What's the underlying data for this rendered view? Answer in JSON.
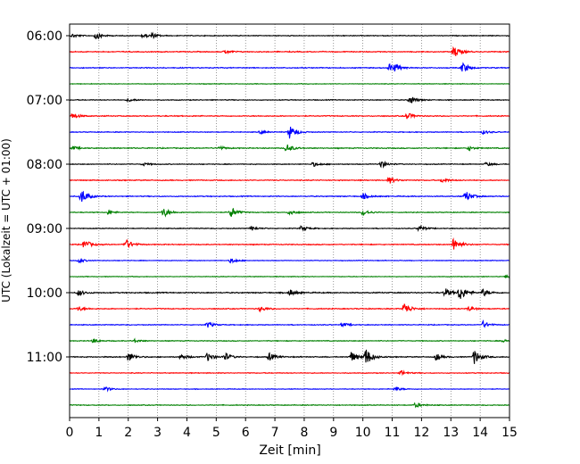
{
  "chart_data": {
    "type": "line",
    "title": "",
    "xlabel": "Zeit  [min]",
    "ylabel": "UTC (Lokalzeit = UTC + 01:00)",
    "xlim": [
      0,
      15
    ],
    "x_ticks": [
      "0",
      "1",
      "2",
      "3",
      "4",
      "5",
      "6",
      "7",
      "8",
      "9",
      "10",
      "11",
      "12",
      "13",
      "14",
      "15"
    ],
    "y_ticks": [
      "06:00",
      "07:00",
      "08:00",
      "09:00",
      "10:00",
      "11:00"
    ],
    "grid": "vertical dotted lines at each minute",
    "trace_interval_min": 15,
    "colors": {
      "black": "#000000",
      "red": "#ff0000",
      "blue": "#0000ff",
      "green": "#008000"
    },
    "traces": [
      {
        "start": "06:00",
        "color": "black",
        "noise": 0.5,
        "events": [
          [
            0.1,
            0.5
          ],
          [
            0.9,
            1.0
          ],
          [
            2.5,
            0.6
          ],
          [
            2.8,
            0.6
          ]
        ]
      },
      {
        "start": "06:15",
        "color": "red",
        "noise": 0.6,
        "events": [
          [
            5.3,
            0.5
          ],
          [
            13.1,
            1.6
          ]
        ]
      },
      {
        "start": "06:30",
        "color": "blue",
        "noise": 0.6,
        "events": [
          [
            10.9,
            1.1
          ],
          [
            11.1,
            0.7
          ],
          [
            13.4,
            1.4
          ]
        ]
      },
      {
        "start": "06:45",
        "color": "green",
        "noise": 0.4,
        "events": []
      },
      {
        "start": "07:00",
        "color": "black",
        "noise": 0.5,
        "events": [
          [
            2.0,
            0.5
          ],
          [
            11.6,
            1.2
          ]
        ]
      },
      {
        "start": "07:15",
        "color": "red",
        "noise": 0.6,
        "events": [
          [
            0.1,
            0.8
          ],
          [
            11.5,
            0.9
          ]
        ]
      },
      {
        "start": "07:30",
        "color": "blue",
        "noise": 0.5,
        "events": [
          [
            6.5,
            0.4
          ],
          [
            7.5,
            1.8
          ],
          [
            14.1,
            0.5
          ]
        ]
      },
      {
        "start": "07:45",
        "color": "green",
        "noise": 0.6,
        "events": [
          [
            0.1,
            0.5
          ],
          [
            5.1,
            0.5
          ],
          [
            7.4,
            1.2
          ],
          [
            13.6,
            0.6
          ]
        ]
      },
      {
        "start": "08:00",
        "color": "black",
        "noise": 0.5,
        "events": [
          [
            2.5,
            0.4
          ],
          [
            8.3,
            0.6
          ],
          [
            10.6,
            1.1
          ],
          [
            14.2,
            0.5
          ]
        ]
      },
      {
        "start": "08:15",
        "color": "red",
        "noise": 0.6,
        "events": [
          [
            10.9,
            0.9
          ],
          [
            12.7,
            0.6
          ]
        ]
      },
      {
        "start": "08:30",
        "color": "blue",
        "noise": 0.6,
        "events": [
          [
            0.4,
            2.0
          ],
          [
            10.0,
            0.8
          ],
          [
            13.5,
            1.5
          ]
        ]
      },
      {
        "start": "08:45",
        "color": "green",
        "noise": 0.5,
        "events": [
          [
            1.3,
            0.5
          ],
          [
            3.2,
            1.3
          ],
          [
            5.5,
            1.5
          ],
          [
            7.5,
            0.8
          ],
          [
            10.0,
            0.9
          ]
        ]
      },
      {
        "start": "09:00",
        "color": "black",
        "noise": 0.5,
        "events": [
          [
            6.2,
            0.6
          ],
          [
            7.9,
            0.7
          ],
          [
            11.9,
            0.8
          ]
        ]
      },
      {
        "start": "09:15",
        "color": "red",
        "noise": 0.6,
        "events": [
          [
            0.5,
            1.3
          ],
          [
            1.9,
            1.6
          ],
          [
            13.1,
            2.0
          ]
        ]
      },
      {
        "start": "09:30",
        "color": "blue",
        "noise": 0.4,
        "events": [
          [
            0.3,
            0.6
          ],
          [
            5.5,
            0.7
          ]
        ]
      },
      {
        "start": "09:45",
        "color": "green",
        "noise": 0.4,
        "events": [
          [
            14.9,
            0.5
          ]
        ]
      },
      {
        "start": "10:00",
        "color": "black",
        "noise": 0.7,
        "events": [
          [
            0.3,
            0.8
          ],
          [
            7.5,
            0.9
          ],
          [
            12.8,
            1.2
          ],
          [
            13.3,
            2.2
          ],
          [
            14.1,
            1.0
          ]
        ]
      },
      {
        "start": "10:15",
        "color": "red",
        "noise": 0.6,
        "events": [
          [
            0.3,
            0.6
          ],
          [
            6.5,
            0.7
          ],
          [
            11.4,
            1.8
          ],
          [
            13.6,
            0.6
          ]
        ]
      },
      {
        "start": "10:30",
        "color": "blue",
        "noise": 0.5,
        "events": [
          [
            4.7,
            0.8
          ],
          [
            9.3,
            0.6
          ],
          [
            14.1,
            0.9
          ]
        ]
      },
      {
        "start": "10:45",
        "color": "green",
        "noise": 0.5,
        "events": [
          [
            0.8,
            0.6
          ],
          [
            2.2,
            0.5
          ],
          [
            14.8,
            0.4
          ]
        ]
      },
      {
        "start": "11:00",
        "color": "black",
        "noise": 0.6,
        "events": [
          [
            2.0,
            1.3
          ],
          [
            3.8,
            0.8
          ],
          [
            4.7,
            1.2
          ],
          [
            5.3,
            1.0
          ],
          [
            6.8,
            1.1
          ],
          [
            9.6,
            1.4
          ],
          [
            10.1,
            2.4
          ],
          [
            12.5,
            1.0
          ],
          [
            13.8,
            2.0
          ]
        ]
      },
      {
        "start": "11:15",
        "color": "red",
        "noise": 0.5,
        "events": [
          [
            11.3,
            0.6
          ]
        ]
      },
      {
        "start": "11:30",
        "color": "blue",
        "noise": 0.4,
        "events": [
          [
            1.2,
            0.6
          ],
          [
            11.1,
            0.6
          ]
        ]
      },
      {
        "start": "11:45",
        "color": "green",
        "noise": 0.5,
        "events": [
          [
            11.8,
            0.7
          ]
        ]
      }
    ]
  }
}
